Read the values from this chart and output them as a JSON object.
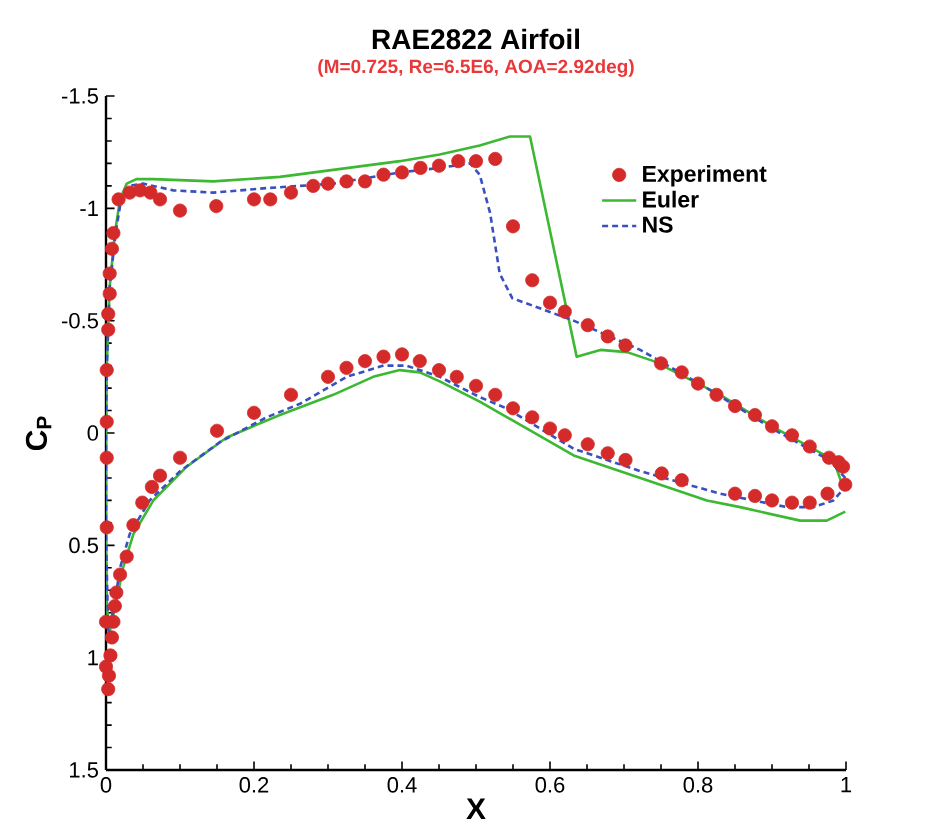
{
  "chart_data": {
    "type": "line",
    "title": "RAE2822 Airfoil",
    "subtitle": "(M=0.725, Re=6.5E6, AOA=2.92deg)",
    "xlabel": "X",
    "ylabel": "C$_{P}$",
    "xlim": [
      0,
      1
    ],
    "xticks": [
      0,
      0.2,
      0.4,
      0.6,
      0.8,
      1
    ],
    "ylim": [
      1.5,
      -1.5
    ],
    "yticks": [
      -1.5,
      -1,
      -0.5,
      0,
      0.5,
      1,
      1.5
    ],
    "legend": "top right",
    "series": [
      {
        "name": "Experiment",
        "type": "scatter",
        "color": "#d42a2a",
        "x": [
          0.001,
          0.003,
          0.003,
          0.005,
          0.005,
          0.008,
          0.01,
          0.017,
          0.032,
          0.046,
          0.06,
          0.073,
          0.1,
          0.149,
          0.2,
          0.222,
          0.25,
          0.28,
          0.3,
          0.325,
          0.35,
          0.375,
          0.4,
          0.425,
          0.45,
          0.476,
          0.5,
          0.526,
          0.55,
          0.576,
          0.6,
          0.62,
          0.651,
          0.678,
          0.702,
          0.75,
          0.778,
          0.8,
          0.825,
          0.85,
          0.877,
          0.9,
          0.927,
          0.951,
          0.977,
          0.99,
          0.996,
          0.999,
          0.975,
          0.951,
          0.927,
          0.9,
          0.877,
          0.85,
          0.778,
          0.751,
          0.702,
          0.678,
          0.651,
          0.62,
          0.6,
          0.576,
          0.55,
          0.526,
          0.5,
          0.474,
          0.45,
          0.424,
          0.4,
          0.375,
          0.35,
          0.325,
          0.3,
          0.25,
          0.2,
          0.15,
          0.1,
          0.073,
          0.062,
          0.049,
          0.037,
          0.028,
          0.019,
          0.014,
          0.012,
          0.01,
          0.008,
          0.006,
          0.004,
          0.003,
          0.001,
          0.001,
          0.001,
          0,
          0
        ],
        "values": [
          -0.28,
          -0.46,
          -0.53,
          -0.62,
          -0.71,
          -0.82,
          -0.89,
          -1.04,
          -1.07,
          -1.08,
          -1.07,
          -1.04,
          -0.99,
          -1.01,
          -1.04,
          -1.04,
          -1.07,
          -1.1,
          -1.11,
          -1.12,
          -1.12,
          -1.15,
          -1.16,
          -1.18,
          -1.19,
          -1.21,
          -1.21,
          -1.22,
          -0.92,
          -0.68,
          -0.58,
          -0.54,
          -0.48,
          -0.43,
          -0.39,
          -0.31,
          -0.27,
          -0.22,
          -0.17,
          -0.12,
          -0.08,
          -0.03,
          0.01,
          0.06,
          0.11,
          0.13,
          0.15,
          0.23,
          0.27,
          0.31,
          0.31,
          0.3,
          0.28,
          0.27,
          0.21,
          0.18,
          0.12,
          0.09,
          0.05,
          0.01,
          -0.02,
          -0.07,
          -0.11,
          -0.17,
          -0.21,
          -0.25,
          -0.28,
          -0.32,
          -0.35,
          -0.34,
          -0.32,
          -0.29,
          -0.25,
          -0.17,
          -0.09,
          -0.01,
          0.11,
          0.19,
          0.24,
          0.31,
          0.41,
          0.55,
          0.63,
          0.71,
          0.77,
          0.84,
          0.91,
          0.99,
          1.08,
          1.14,
          -0.05,
          0.11,
          0.42,
          0.84,
          1.04
        ]
      },
      {
        "name": "Euler",
        "marker": "none",
        "line_style": "solid",
        "color": "#3cb832",
        "x": [
          0.996,
          0.983,
          0.9,
          0.83,
          0.74,
          0.704,
          0.668,
          0.636,
          0.573,
          0.546,
          0.505,
          0.451,
          0.397,
          0.235,
          0.145,
          0.064,
          0.041,
          0.028,
          0.019,
          0.012,
          0.005,
          0.001,
          0,
          0,
          0.001,
          0.004,
          0.014,
          0.023,
          0.037,
          0.064,
          0.109,
          0.163,
          0.235,
          0.307,
          0.361,
          0.397,
          0.424,
          0.451,
          0.505,
          0.632,
          0.812,
          0.857,
          0.938,
          0.974,
          0.999
        ],
        "values": [
          0.24,
          0.12,
          -0.03,
          -0.17,
          -0.32,
          -0.36,
          -0.37,
          -0.34,
          -1.32,
          -1.32,
          -1.28,
          -1.24,
          -1.21,
          -1.14,
          -1.12,
          -1.13,
          -1.13,
          -1.11,
          -1.04,
          -0.89,
          -0.65,
          -0.29,
          0,
          0.45,
          0.75,
          0.9,
          0.75,
          0.6,
          0.45,
          0.3,
          0.15,
          0.02,
          -0.08,
          -0.17,
          -0.25,
          -0.28,
          -0.27,
          -0.23,
          -0.14,
          0.1,
          0.3,
          0.33,
          0.39,
          0.39,
          0.35
        ]
      },
      {
        "name": "NS",
        "marker": "none",
        "line_style": "dashed",
        "color": "#3a4fc0",
        "x": [
          0.999,
          0.977,
          0.9,
          0.812,
          0.722,
          0.632,
          0.549,
          0.532,
          0.519,
          0.505,
          0.492,
          0.451,
          0.397,
          0.307,
          0.217,
          0.145,
          0.091,
          0.05,
          0.032,
          0.021,
          0.013,
          0.005,
          0.001,
          0,
          0,
          0.003,
          0.012,
          0.019,
          0.032,
          0.059,
          0.1,
          0.154,
          0.217,
          0.262,
          0.325,
          0.375,
          0.406,
          0.451,
          0.505,
          0.541,
          0.632,
          0.722,
          0.83,
          0.92,
          0.956,
          0.983,
          0.999
        ],
        "values": [
          0.2,
          0.12,
          -0.02,
          -0.2,
          -0.37,
          -0.5,
          -0.6,
          -0.71,
          -0.98,
          -1.15,
          -1.2,
          -1.18,
          -1.16,
          -1.11,
          -1.09,
          -1.07,
          -1.08,
          -1.11,
          -1.1,
          -1.05,
          -0.89,
          -0.65,
          -0.29,
          0,
          0.45,
          0.9,
          0.75,
          0.6,
          0.45,
          0.3,
          0.17,
          0.04,
          -0.07,
          -0.13,
          -0.25,
          -0.3,
          -0.3,
          -0.25,
          -0.16,
          -0.11,
          0.07,
          0.17,
          0.27,
          0.33,
          0.33,
          0.3,
          0.24
        ]
      }
    ]
  }
}
